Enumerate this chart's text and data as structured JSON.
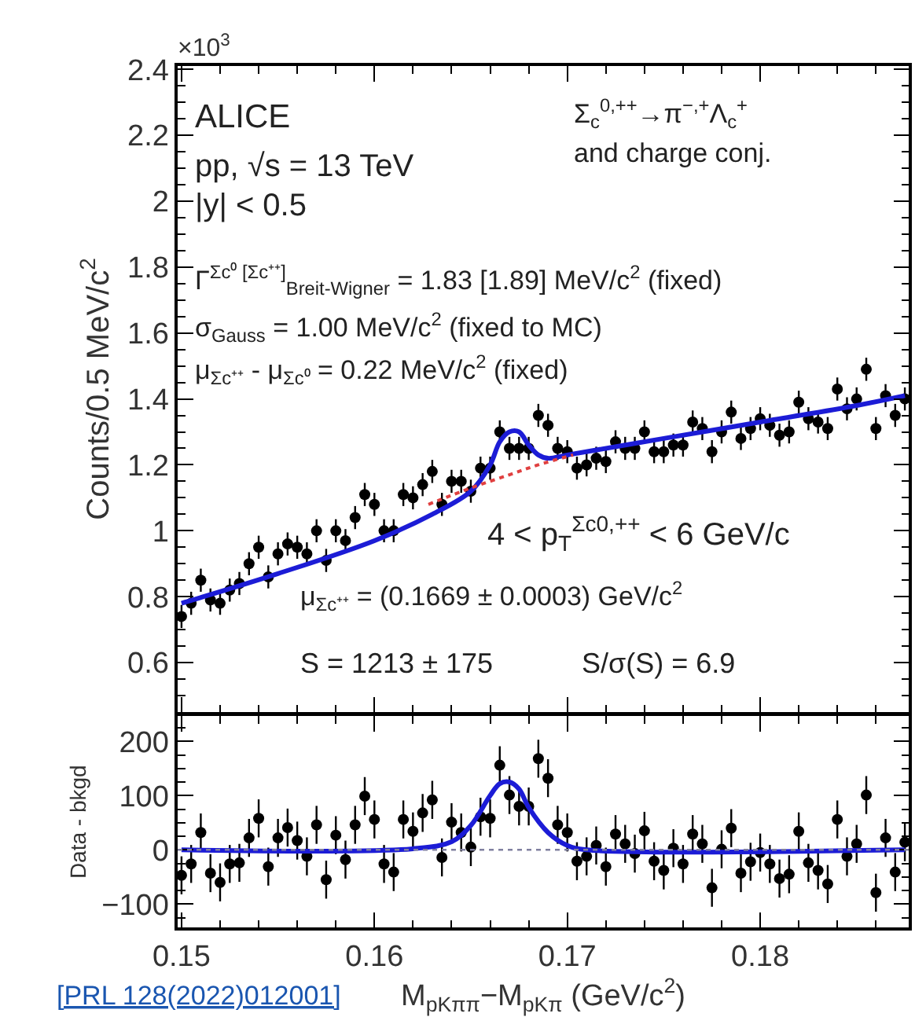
{
  "chart_data": [
    {
      "type": "scatter",
      "ylabel": "Counts/0.5 MeV/c$^{2}$",
      "tick_labels": "y",
      "x": [
        0.15,
        0.1505,
        0.151,
        0.1515,
        0.152,
        0.1525,
        0.153,
        0.1535,
        0.154,
        0.1545,
        0.155,
        0.1555,
        0.156,
        0.1565,
        0.157,
        0.1575,
        0.158,
        0.1585,
        0.159,
        0.1595,
        0.16,
        0.1605,
        0.161,
        0.1615,
        0.162,
        0.1625,
        0.163,
        0.1635,
        0.164,
        0.1645,
        0.165,
        0.1655,
        0.166,
        0.1665,
        0.167,
        0.1675,
        0.168,
        0.1685,
        0.169,
        0.1695,
        0.17,
        0.1705,
        0.171,
        0.1715,
        0.172,
        0.1725,
        0.173,
        0.1735,
        0.174,
        0.1745,
        0.175,
        0.1755,
        0.176,
        0.1765,
        0.177,
        0.1775,
        0.178,
        0.1785,
        0.179,
        0.1795,
        0.18,
        0.1805,
        0.181,
        0.1815,
        0.182,
        0.1825,
        0.183,
        0.1835,
        0.184,
        0.1845,
        0.185,
        0.1855,
        0.186,
        0.1865,
        0.187,
        0.1875
      ],
      "xlim": [
        0.1498,
        0.1877
      ],
      "xticks": [
        0.15,
        0.16,
        0.17,
        0.18
      ],
      "ylim": [
        0.45,
        2.41
      ],
      "yticks": [
        0.6,
        0.8,
        1,
        1.2,
        1.4,
        1.6,
        1.8,
        2,
        2.2,
        2.4
      ],
      "series": [
        {
          "marker": "circle",
          "color": "#000000",
          "values": [
            0.74,
            0.78,
            0.85,
            0.79,
            0.78,
            0.82,
            0.84,
            0.9,
            0.95,
            0.86,
            0.93,
            0.96,
            0.95,
            0.93,
            1.0,
            0.91,
            1.0,
            0.97,
            1.04,
            1.11,
            1.08,
            1.0,
            1.0,
            1.11,
            1.1,
            1.14,
            1.18,
            1.08,
            1.15,
            1.15,
            1.12,
            1.19,
            1.19,
            1.3,
            1.25,
            1.25,
            1.25,
            1.35,
            1.32,
            1.25,
            1.24,
            1.19,
            1.2,
            1.22,
            1.21,
            1.27,
            1.25,
            1.25,
            1.3,
            1.24,
            1.24,
            1.26,
            1.26,
            1.33,
            1.31,
            1.24,
            1.3,
            1.36,
            1.28,
            1.31,
            1.34,
            1.32,
            1.29,
            1.3,
            1.39,
            1.34,
            1.33,
            1.31,
            1.43,
            1.37,
            1.4,
            1.49,
            1.31,
            1.41,
            1.35,
            1.4
          ],
          "errors": [
            0.035,
            0.035,
            0.035,
            0.035,
            0.035,
            0.035,
            0.035,
            0.035,
            0.035,
            0.035,
            0.035,
            0.035,
            0.035,
            0.035,
            0.035,
            0.035,
            0.035,
            0.035,
            0.035,
            0.035,
            0.035,
            0.035,
            0.035,
            0.035,
            0.035,
            0.035,
            0.035,
            0.035,
            0.035,
            0.035,
            0.035,
            0.035,
            0.035,
            0.035,
            0.035,
            0.035,
            0.035,
            0.035,
            0.035,
            0.035,
            0.035,
            0.035,
            0.035,
            0.035,
            0.035,
            0.035,
            0.035,
            0.035,
            0.035,
            0.035,
            0.035,
            0.035,
            0.035,
            0.035,
            0.035,
            0.035,
            0.035,
            0.035,
            0.035,
            0.035,
            0.035,
            0.035,
            0.035,
            0.035,
            0.035,
            0.035,
            0.035,
            0.035,
            0.035,
            0.035,
            0.035,
            0.035,
            0.035,
            0.035,
            0.035,
            0.035
          ]
        },
        {
          "type": "line",
          "color": "#1c1cd6",
          "line_style": "solid",
          "x": [
            0.15,
            0.155,
            0.16,
            0.163,
            0.165,
            0.166,
            0.1665,
            0.167,
            0.1675,
            0.168,
            0.1685,
            0.169,
            0.17,
            0.175,
            0.18,
            0.185,
            0.1875
          ],
          "values": [
            0.78,
            0.87,
            0.97,
            1.05,
            1.12,
            1.2,
            1.27,
            1.3,
            1.3,
            1.26,
            1.23,
            1.22,
            1.23,
            1.28,
            1.33,
            1.38,
            1.41
          ]
        },
        {
          "type": "line",
          "color": "#e04040",
          "line_style": "dotted",
          "x": [
            0.1628,
            0.165,
            0.167,
            0.1685,
            0.1703
          ],
          "values": [
            1.08,
            1.13,
            1.17,
            1.2,
            1.23
          ]
        }
      ],
      "annotations": [
        "ALICE",
        "pp, √s = 13 TeV",
        "|y| < 0.5",
        "Γ$^{Σc⁰ [Σc⁺⁺]}$$_{Breit-Wigner}$ = 1.83 [1.89] MeV/c$^{2}$ (fixed)",
        "σ$_{Gauss}$ = 1.00 MeV/c$^{2}$ (fixed to MC)",
        "μ$_{Σc⁺⁺}$ - μ$_{Σc⁰}$ = 0.22 MeV/c$^{2}$ (fixed)",
        "Σ$_{c}$$^{0,++}$→π$^{−,+}$Λ$_{c}$$^{+}$",
        "and charge conj.",
        "4 < p$_{T}$$^{Σc0,++}$ < 6 GeV/c",
        "μ$_{Σc⁺⁺}$ = (0.1669 ± 0.0003) GeV/c$^{2}$",
        "S = 1213 ± 175",
        "S/σ(S) = 6.9",
        "×10$^{3}$"
      ]
    },
    {
      "type": "scatter",
      "ylabel": "Data - bkgd",
      "xlabel": "M$_{pKππ}$−M$_{pKπ}$ (GeV/c$^{2}$)",
      "x": [
        0.15,
        0.1505,
        0.151,
        0.1515,
        0.152,
        0.1525,
        0.153,
        0.1535,
        0.154,
        0.1545,
        0.155,
        0.1555,
        0.156,
        0.1565,
        0.157,
        0.1575,
        0.158,
        0.1585,
        0.159,
        0.1595,
        0.16,
        0.1605,
        0.161,
        0.1615,
        0.162,
        0.1625,
        0.163,
        0.1635,
        0.164,
        0.1645,
        0.165,
        0.1655,
        0.166,
        0.1665,
        0.167,
        0.1675,
        0.168,
        0.1685,
        0.169,
        0.1695,
        0.17,
        0.1705,
        0.171,
        0.1715,
        0.172,
        0.1725,
        0.173,
        0.1735,
        0.174,
        0.1745,
        0.175,
        0.1755,
        0.176,
        0.1765,
        0.177,
        0.1775,
        0.178,
        0.1785,
        0.179,
        0.1795,
        0.18,
        0.1805,
        0.181,
        0.1815,
        0.182,
        0.1825,
        0.183,
        0.1835,
        0.184,
        0.1845,
        0.185,
        0.1855,
        0.186,
        0.1865,
        0.187,
        0.1875
      ],
      "xlim": [
        0.1498,
        0.1877
      ],
      "xticks": [
        0.15,
        0.16,
        0.17,
        0.18
      ],
      "ylim": [
        -143,
        246
      ],
      "yticks": [
        {
          "value": -100,
          "label": "−100"
        },
        0,
        100,
        200
      ],
      "series": [
        {
          "marker": "circle",
          "color": "#000000",
          "values": [
            -47,
            -26,
            32,
            -43,
            -60,
            -26,
            -24,
            22,
            58,
            -31,
            22,
            41,
            17,
            -12,
            46,
            -55,
            27,
            -18,
            46,
            99,
            56,
            -26,
            -41,
            56,
            34,
            68,
            92,
            -14,
            51,
            32,
            5,
            61,
            58,
            156,
            101,
            80,
            80,
            168,
            132,
            46,
            32,
            -21,
            -12,
            8,
            -31,
            29,
            11,
            -7,
            35,
            -21,
            -38,
            3,
            -26,
            29,
            11,
            -70,
            1,
            40,
            -43,
            -22,
            -5,
            -26,
            -53,
            -45,
            34,
            -24,
            -38,
            -63,
            56,
            -12,
            11,
            101,
            -79,
            22,
            -41,
            14
          ],
          "errors": [
            35,
            35,
            35,
            35,
            35,
            35,
            35,
            35,
            35,
            35,
            35,
            35,
            35,
            35,
            35,
            35,
            35,
            35,
            35,
            35,
            35,
            35,
            35,
            35,
            35,
            35,
            35,
            35,
            35,
            35,
            35,
            35,
            35,
            35,
            35,
            35,
            35,
            35,
            35,
            35,
            35,
            35,
            35,
            35,
            35,
            35,
            35,
            35,
            35,
            35,
            35,
            35,
            35,
            35,
            35,
            35,
            35,
            35,
            35,
            35,
            35,
            35,
            35,
            35,
            35,
            35,
            35,
            35,
            35,
            35,
            35,
            35,
            35,
            35,
            35,
            35
          ]
        },
        {
          "type": "line",
          "color": "#1c1cd6",
          "line_style": "solid",
          "x": [
            0.15,
            0.162,
            0.164,
            0.165,
            0.166,
            0.1665,
            0.167,
            0.1675,
            0.168,
            0.169,
            0.17,
            0.171,
            0.1875
          ],
          "values": [
            0,
            2,
            15,
            45,
            100,
            122,
            125,
            112,
            78,
            32,
            8,
            0,
            0
          ]
        }
      ],
      "ref_lines": [
        {
          "axis": "y",
          "value": 0,
          "color": "#8080a0",
          "line_style": "dotted"
        }
      ],
      "annotations": [
        "[PRL 128(2022)012001]"
      ]
    }
  ]
}
